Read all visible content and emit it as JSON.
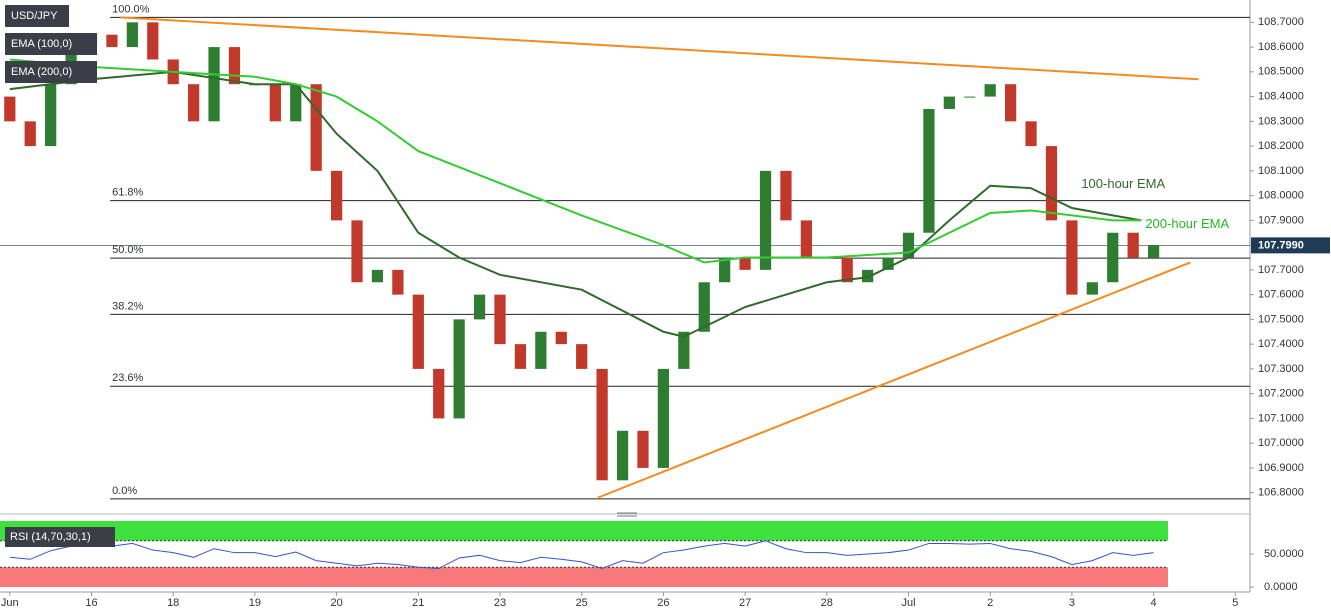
{
  "chart_data": {
    "type": "candlestick",
    "symbol": "USD/JPY",
    "categories": [
      "Jun",
      "16",
      "18",
      "19",
      "20",
      "21",
      "23",
      "25",
      "26",
      "27",
      "28",
      "Jul",
      "2",
      "3",
      "4",
      "5"
    ],
    "xlim": [
      -0.12,
      15.18
    ],
    "ylim": [
      106.73,
      108.77
    ],
    "yticks": [
      {
        "value": 108.7,
        "label": "108.7000"
      },
      {
        "value": 108.6,
        "label": "108.6000"
      },
      {
        "value": 108.5,
        "label": "108.5000"
      },
      {
        "value": 108.4,
        "label": "108.4000"
      },
      {
        "value": 108.3,
        "label": "108.3000"
      },
      {
        "value": 108.2,
        "label": "108.2000"
      },
      {
        "value": 108.1,
        "label": "108.1000"
      },
      {
        "value": 108,
        "label": "108.0000"
      },
      {
        "value": 107.9,
        "label": "107.9000"
      },
      {
        "value": 107.8,
        "label": "107.8000"
      },
      {
        "value": 107.7,
        "label": "107.7000"
      },
      {
        "value": 107.6,
        "label": "107.6000"
      },
      {
        "value": 107.5,
        "label": "107.5000"
      },
      {
        "value": 107.4,
        "label": "107.4000"
      },
      {
        "value": 107.3,
        "label": "107.3000"
      },
      {
        "value": 107.2,
        "label": "107.2000"
      },
      {
        "value": 107.1,
        "label": "107.1000"
      },
      {
        "value": 107,
        "label": "107.0000"
      },
      {
        "value": 106.9,
        "label": "106.9000"
      },
      {
        "value": 106.8,
        "label": "106.8000"
      }
    ],
    "candles": {
      "up_color": "#2e7d32",
      "down_color": "#c0392b",
      "x": [
        0,
        0.25,
        0.5,
        0.75,
        1,
        1.25,
        1.5,
        1.75,
        2,
        2.25,
        2.5,
        2.75,
        3,
        3.25,
        3.5,
        3.75,
        4,
        4.25,
        4.5,
        4.75,
        5,
        5.25,
        5.5,
        5.75,
        6,
        6.25,
        6.5,
        6.75,
        7,
        7.25,
        7.5,
        7.75,
        8,
        8.25,
        8.5,
        8.75,
        9,
        9.25,
        9.5,
        9.75,
        10,
        10.25,
        10.5,
        10.75,
        11,
        11.25,
        11.5,
        11.75,
        12,
        12.25,
        12.5,
        12.75,
        13,
        13.25,
        13.5,
        13.75,
        14
      ],
      "open": [
        108.4,
        108.3,
        108.2,
        108.45,
        108.6,
        108.65,
        108.6,
        108.7,
        108.55,
        108.45,
        108.3,
        108.6,
        108.45,
        108.45,
        108.3,
        108.45,
        108.1,
        107.9,
        107.65,
        107.7,
        107.6,
        107.3,
        107.1,
        107.5,
        107.6,
        107.4,
        107.3,
        107.45,
        107.4,
        107.3,
        106.85,
        107.05,
        106.9,
        107.3,
        107.45,
        107.65,
        107.75,
        107.7,
        108.1,
        107.9,
        107.75,
        107.75,
        107.65,
        107.7,
        107.75,
        107.85,
        108.35,
        108.4,
        108.4,
        108.45,
        108.3,
        108.2,
        107.9,
        107.6,
        107.65,
        107.85,
        107.75
      ],
      "close": [
        108.3,
        108.2,
        108.45,
        108.6,
        108.65,
        108.6,
        108.7,
        108.55,
        108.45,
        108.3,
        108.6,
        108.45,
        108.45,
        108.3,
        108.45,
        108.1,
        107.9,
        107.65,
        107.7,
        107.6,
        107.3,
        107.1,
        107.5,
        107.6,
        107.4,
        107.3,
        107.45,
        107.4,
        107.3,
        106.85,
        107.05,
        106.9,
        107.3,
        107.45,
        107.65,
        107.75,
        107.7,
        108.1,
        107.9,
        107.75,
        107.75,
        107.65,
        107.7,
        107.75,
        107.85,
        108.35,
        108.4,
        108.4,
        108.45,
        108.3,
        108.2,
        107.9,
        107.6,
        107.65,
        107.85,
        107.75,
        107.8
      ]
    },
    "series": [
      {
        "name": "EMA (100,0)",
        "annotation": "100-hour EMA",
        "color": "#2e6b2a",
        "x": [
          0,
          1,
          2,
          3,
          3.5,
          4,
          4.5,
          5,
          5.5,
          6,
          7,
          8,
          8.25,
          9,
          10,
          10.5,
          11,
          11.5,
          12,
          12.5,
          13,
          13.5,
          13.85
        ],
        "values": [
          108.43,
          108.47,
          108.5,
          108.45,
          108.45,
          108.25,
          108.1,
          107.85,
          107.75,
          107.68,
          107.62,
          107.45,
          107.43,
          107.55,
          107.65,
          107.67,
          107.75,
          107.9,
          108.04,
          108.03,
          107.95,
          107.92,
          107.9
        ]
      },
      {
        "name": "EMA (200,0)",
        "annotation": "200-hour EMA",
        "color": "#33cc33",
        "x": [
          0,
          1,
          2,
          3,
          3.5,
          4,
          4.5,
          5,
          6,
          7,
          8,
          8.5,
          9,
          10,
          11,
          11.5,
          12,
          12.5,
          13,
          13.5,
          13.85
        ],
        "values": [
          108.55,
          108.52,
          108.5,
          108.48,
          108.45,
          108.4,
          108.3,
          108.18,
          108.05,
          107.92,
          107.8,
          107.73,
          107.75,
          107.75,
          107.77,
          107.85,
          107.93,
          107.94,
          107.92,
          107.9,
          107.9
        ]
      }
    ],
    "trendlines": [
      {
        "color": "#f28c1e",
        "x": [
          1.35,
          14.55
        ],
        "values": [
          108.72,
          108.47
        ]
      },
      {
        "color": "#f28c1e",
        "x": [
          7.2,
          14.45
        ],
        "values": [
          106.78,
          107.73
        ]
      }
    ],
    "fib_levels": [
      {
        "label": "100.0%",
        "value": 108.72
      },
      {
        "label": "61.8%",
        "value": 107.98
      },
      {
        "label": "50.0%",
        "value": 107.7475
      },
      {
        "label": "38.2%",
        "value": 107.52
      },
      {
        "label": "23.6%",
        "value": 107.23
      },
      {
        "label": "0.0%",
        "value": 106.775
      }
    ],
    "last_price": {
      "value": 107.799,
      "label": "107.7990"
    },
    "rsi": {
      "title": "RSI (14,70,30,1)",
      "color": "#3355cc",
      "ylim": [
        0,
        100
      ],
      "upper": 70,
      "lower": 30,
      "yticks": [
        {
          "value": 50,
          "label": "50.0000"
        },
        {
          "value": 0,
          "label": "0.0000"
        }
      ],
      "values": [
        45,
        42,
        55,
        62,
        64,
        62,
        66,
        56,
        52,
        45,
        58,
        52,
        52,
        46,
        53,
        40,
        36,
        32,
        36,
        34,
        30,
        28,
        44,
        48,
        40,
        37,
        45,
        42,
        38,
        28,
        40,
        36,
        52,
        56,
        62,
        66,
        62,
        70,
        58,
        52,
        52,
        48,
        50,
        52,
        56,
        66,
        66,
        65,
        66,
        58,
        54,
        46,
        34,
        40,
        52,
        48,
        52
      ]
    }
  }
}
